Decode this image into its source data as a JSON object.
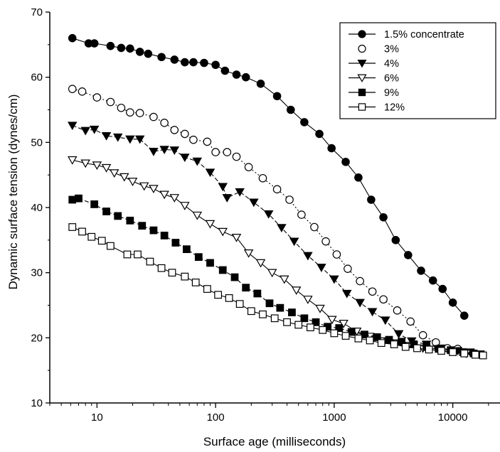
{
  "chart_data": {
    "type": "scatter",
    "xscale": "log",
    "xlim": [
      4,
      25000
    ],
    "ylim": [
      10,
      70
    ],
    "xlabel": "Surface age (milliseconds)",
    "ylabel": "Dynamic surface tension (dynes/cm)",
    "xticks": [
      10,
      100,
      1000,
      10000
    ],
    "xtick_labels": [
      "10",
      "100",
      "1000",
      "10000"
    ],
    "yticks": [
      10,
      20,
      30,
      40,
      50,
      60,
      70
    ],
    "ytick_labels": [
      "10",
      "20",
      "30",
      "40",
      "50",
      "60",
      "70"
    ],
    "grid": false,
    "legend_position": "top-right",
    "series": [
      {
        "name": "1.5% concentrate",
        "marker": "filled-circle",
        "line": "solid",
        "color": "#000000",
        "points": [
          [
            6.2,
            66.0
          ],
          [
            8.5,
            65.2
          ],
          [
            9.5,
            65.2
          ],
          [
            13,
            64.8
          ],
          [
            16,
            64.5
          ],
          [
            19,
            64.4
          ],
          [
            23,
            63.9
          ],
          [
            27,
            63.6
          ],
          [
            35,
            63.1
          ],
          [
            45,
            62.7
          ],
          [
            55,
            62.3
          ],
          [
            65,
            62.3
          ],
          [
            80,
            62.2
          ],
          [
            100,
            61.9
          ],
          [
            120,
            61.0
          ],
          [
            150,
            60.4
          ],
          [
            180,
            60.0
          ],
          [
            240,
            59.0
          ],
          [
            330,
            57.1
          ],
          [
            430,
            55.0
          ],
          [
            560,
            53.1
          ],
          [
            750,
            51.3
          ],
          [
            950,
            49.1
          ],
          [
            1250,
            47.0
          ],
          [
            1600,
            44.6
          ],
          [
            2050,
            41.2
          ],
          [
            2600,
            38.5
          ],
          [
            3300,
            35.0
          ],
          [
            4200,
            32.7
          ],
          [
            5400,
            30.3
          ],
          [
            6800,
            28.8
          ],
          [
            8200,
            27.5
          ],
          [
            10000,
            25.4
          ],
          [
            12500,
            23.4
          ]
        ]
      },
      {
        "name": "3%",
        "marker": "open-circle",
        "line": "dotted",
        "color": "#000000",
        "points": [
          [
            6.2,
            58.2
          ],
          [
            7.5,
            57.8
          ],
          [
            10,
            56.9
          ],
          [
            13,
            56.2
          ],
          [
            16,
            55.3
          ],
          [
            19,
            54.6
          ],
          [
            23,
            54.5
          ],
          [
            30,
            53.9
          ],
          [
            37,
            53.0
          ],
          [
            45,
            51.9
          ],
          [
            55,
            51.3
          ],
          [
            65,
            50.4
          ],
          [
            85,
            50.1
          ],
          [
            100,
            48.5
          ],
          [
            125,
            48.5
          ],
          [
            150,
            47.8
          ],
          [
            190,
            46.2
          ],
          [
            250,
            44.5
          ],
          [
            330,
            42.8
          ],
          [
            420,
            41.2
          ],
          [
            530,
            38.9
          ],
          [
            680,
            37.0
          ],
          [
            850,
            34.8
          ],
          [
            1050,
            32.8
          ],
          [
            1300,
            30.6
          ],
          [
            1650,
            28.7
          ],
          [
            2100,
            27.1
          ],
          [
            2600,
            25.9
          ],
          [
            3400,
            24.2
          ],
          [
            4400,
            22.5
          ],
          [
            5600,
            20.4
          ],
          [
            7200,
            19.3
          ],
          [
            9000,
            18.4
          ],
          [
            11000,
            18.3
          ]
        ]
      },
      {
        "name": "4%",
        "marker": "filled-triangle-down",
        "line": "dashed",
        "color": "#000000",
        "points": [
          [
            6.2,
            52.6
          ],
          [
            8,
            51.8
          ],
          [
            9.5,
            52.0
          ],
          [
            12,
            51.0
          ],
          [
            15,
            50.8
          ],
          [
            19,
            50.5
          ],
          [
            23,
            50.5
          ],
          [
            30,
            48.6
          ],
          [
            37,
            48.9
          ],
          [
            45,
            48.8
          ],
          [
            55,
            47.7
          ],
          [
            70,
            47.1
          ],
          [
            90,
            45.4
          ],
          [
            115,
            43.2
          ],
          [
            125,
            41.5
          ],
          [
            160,
            42.4
          ],
          [
            210,
            40.8
          ],
          [
            280,
            39.0
          ],
          [
            360,
            36.9
          ],
          [
            460,
            34.8
          ],
          [
            600,
            32.6
          ],
          [
            780,
            30.8
          ],
          [
            1000,
            29.0
          ],
          [
            1280,
            26.8
          ],
          [
            1650,
            25.4
          ],
          [
            2100,
            24.0
          ],
          [
            2700,
            22.7
          ],
          [
            3500,
            20.6
          ],
          [
            4500,
            19.5
          ],
          [
            6000,
            19.0
          ],
          [
            8000,
            18.4
          ],
          [
            11000,
            18.0
          ],
          [
            14000,
            17.8
          ],
          [
            17000,
            17.5
          ]
        ]
      },
      {
        "name": "6%",
        "marker": "open-triangle-down",
        "line": "solid",
        "color": "#000000",
        "points": [
          [
            6.2,
            47.3
          ],
          [
            8,
            46.8
          ],
          [
            10,
            46.5
          ],
          [
            12,
            46.1
          ],
          [
            14,
            45.3
          ],
          [
            17,
            44.7
          ],
          [
            20,
            44.0
          ],
          [
            25,
            43.3
          ],
          [
            30,
            42.9
          ],
          [
            37,
            42.0
          ],
          [
            45,
            41.5
          ],
          [
            55,
            40.3
          ],
          [
            70,
            38.8
          ],
          [
            90,
            37.5
          ],
          [
            115,
            36.3
          ],
          [
            150,
            35.4
          ],
          [
            190,
            33.0
          ],
          [
            240,
            31.5
          ],
          [
            300,
            30.0
          ],
          [
            380,
            29.0
          ],
          [
            480,
            27.3
          ],
          [
            600,
            25.9
          ],
          [
            760,
            24.5
          ],
          [
            960,
            22.8
          ],
          [
            1200,
            22.2
          ],
          [
            1550,
            21.0
          ],
          [
            2000,
            20.2
          ],
          [
            2600,
            19.5
          ],
          [
            3300,
            19.2
          ],
          [
            4200,
            18.8
          ],
          [
            5600,
            18.4
          ],
          [
            7500,
            18.3
          ],
          [
            10000,
            18.0
          ],
          [
            13000,
            17.6
          ]
        ]
      },
      {
        "name": "9%",
        "marker": "filled-square",
        "line": "dashed",
        "color": "#000000",
        "points": [
          [
            6.2,
            41.2
          ],
          [
            7,
            41.4
          ],
          [
            9.5,
            40.5
          ],
          [
            12,
            39.4
          ],
          [
            15,
            38.7
          ],
          [
            19,
            38.0
          ],
          [
            24,
            37.2
          ],
          [
            30,
            36.5
          ],
          [
            37,
            35.7
          ],
          [
            46,
            34.6
          ],
          [
            57,
            33.6
          ],
          [
            72,
            32.4
          ],
          [
            90,
            31.5
          ],
          [
            115,
            30.4
          ],
          [
            145,
            29.3
          ],
          [
            180,
            27.7
          ],
          [
            225,
            26.8
          ],
          [
            285,
            25.3
          ],
          [
            350,
            24.6
          ],
          [
            440,
            23.9
          ],
          [
            560,
            23.0
          ],
          [
            700,
            22.4
          ],
          [
            880,
            21.7
          ],
          [
            1100,
            21.5
          ],
          [
            1400,
            20.9
          ],
          [
            1800,
            20.5
          ],
          [
            2300,
            20.1
          ],
          [
            2900,
            19.7
          ],
          [
            3700,
            19.4
          ],
          [
            4700,
            19.0
          ],
          [
            6000,
            18.6
          ],
          [
            7600,
            18.3
          ],
          [
            9600,
            18.1
          ],
          [
            12200,
            17.8
          ],
          [
            15000,
            17.6
          ]
        ]
      },
      {
        "name": "12%",
        "marker": "open-square",
        "line": "solid",
        "color": "#000000",
        "points": [
          [
            6.2,
            37.0
          ],
          [
            7.5,
            36.3
          ],
          [
            9,
            35.5
          ],
          [
            11,
            34.9
          ],
          [
            13,
            34.1
          ],
          [
            18,
            32.8
          ],
          [
            22,
            32.8
          ],
          [
            28,
            31.7
          ],
          [
            35,
            30.7
          ],
          [
            43,
            30.0
          ],
          [
            55,
            29.4
          ],
          [
            68,
            28.5
          ],
          [
            85,
            27.5
          ],
          [
            105,
            26.6
          ],
          [
            130,
            26.1
          ],
          [
            160,
            25.2
          ],
          [
            200,
            24.1
          ],
          [
            250,
            23.6
          ],
          [
            315,
            23.0
          ],
          [
            400,
            22.4
          ],
          [
            500,
            22.0
          ],
          [
            630,
            21.6
          ],
          [
            800,
            21.2
          ],
          [
            1000,
            20.7
          ],
          [
            1250,
            20.3
          ],
          [
            1600,
            19.9
          ],
          [
            2000,
            19.6
          ],
          [
            2500,
            19.2
          ],
          [
            3200,
            19.0
          ],
          [
            4000,
            18.6
          ],
          [
            5000,
            18.4
          ],
          [
            6300,
            18.2
          ],
          [
            8000,
            18.0
          ],
          [
            10000,
            17.8
          ],
          [
            12500,
            17.6
          ],
          [
            15500,
            17.4
          ],
          [
            18000,
            17.3
          ]
        ]
      }
    ]
  }
}
